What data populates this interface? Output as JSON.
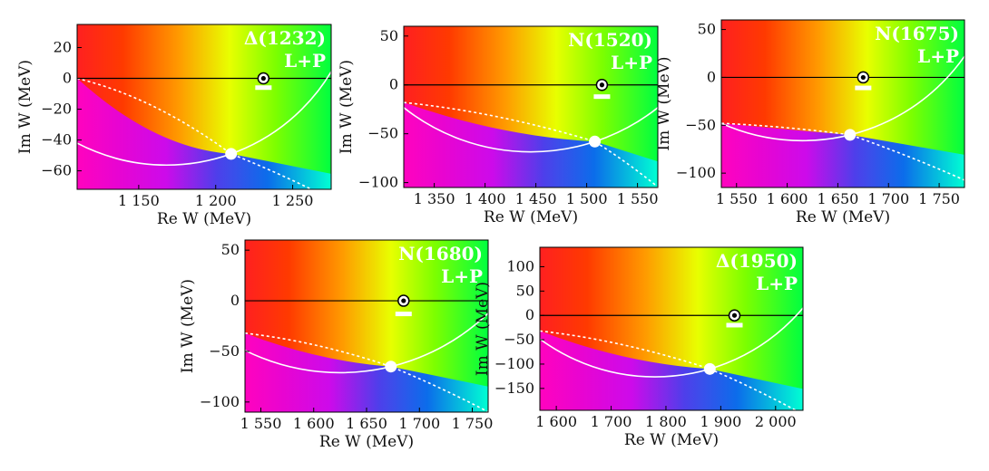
{
  "figure": {
    "description_labels": {
      "re_axis": "Re W (MeV)",
      "im_axis": "Im W (MeV)"
    }
  },
  "chart_data": [
    {
      "type": "heatmap",
      "title": "Δ(1232)",
      "subtitle": "L+P",
      "xlabel": "Re W (MeV)",
      "ylabel": "Im W (MeV)",
      "xlim": [
        1110,
        1275
      ],
      "ylim": [
        -72,
        35
      ],
      "xticks": [
        1150,
        1200,
        1250
      ],
      "xtick_labels": [
        "1 150",
        "1 200",
        "1 250"
      ],
      "yticks": [
        20,
        0,
        -20,
        -40,
        -60
      ],
      "ytick_labels": [
        "20",
        "0",
        "−20",
        "−40",
        "−60"
      ],
      "pole": [
        1210,
        -49
      ],
      "threshold_marker": [
        1231,
        0
      ],
      "marker_bar_y": -6,
      "curve_center": [
        1168,
        68
      ],
      "dashed_start": [
        1110,
        0
      ]
    },
    {
      "type": "heatmap",
      "title": "N(1520)",
      "subtitle": "L+P",
      "xlabel": "Re W (MeV)",
      "ylabel": "Im W (MeV)",
      "xlim": [
        1320,
        1570
      ],
      "ylim": [
        -105,
        60
      ],
      "xticks": [
        1350,
        1400,
        1450,
        1500,
        1550
      ],
      "xtick_labels": [
        "1 350",
        "1 400",
        "1 450",
        "1 500",
        "1 550"
      ],
      "yticks": [
        50,
        0,
        -50,
        -100
      ],
      "ytick_labels": [
        "50",
        "0",
        "−50",
        "−100"
      ],
      "pole": [
        1508,
        -58
      ],
      "threshold_marker": [
        1515,
        0
      ],
      "marker_bar_y": -12,
      "curve_center": [
        1445,
        140
      ],
      "dashed_start": [
        1320,
        -18
      ]
    },
    {
      "type": "heatmap",
      "title": "N(1675)",
      "subtitle": "L+P",
      "xlabel": "Re W (MeV)",
      "ylabel": "Im W (MeV)",
      "xlim": [
        1535,
        1775
      ],
      "ylim": [
        -115,
        60
      ],
      "xticks": [
        1550,
        1600,
        1650,
        1700,
        1750
      ],
      "xtick_labels": [
        "1 550",
        "1 600",
        "1 650",
        "1 700",
        "1 750"
      ],
      "yticks": [
        50,
        0,
        -50,
        -100
      ],
      "ytick_labels": [
        "50",
        "0",
        "−50",
        "−100"
      ],
      "pole": [
        1662,
        -60
      ],
      "threshold_marker": [
        1675,
        0
      ],
      "marker_bar_y": -11,
      "curve_center": [
        1615,
        140
      ],
      "dashed_start": [
        1535,
        -48
      ]
    },
    {
      "type": "heatmap",
      "title": "N(1680)",
      "subtitle": "L+P",
      "xlabel": "Re W (MeV)",
      "ylabel": "Im W (MeV)",
      "xlim": [
        1535,
        1765
      ],
      "ylim": [
        -110,
        60
      ],
      "xticks": [
        1550,
        1600,
        1650,
        1700,
        1750
      ],
      "xtick_labels": [
        "1 550",
        "1 600",
        "1 650",
        "1 700",
        "1 750"
      ],
      "yticks": [
        50,
        0,
        -50,
        -100
      ],
      "ytick_labels": [
        "50",
        "0",
        "−50",
        "−100"
      ],
      "pole": [
        1673,
        -65
      ],
      "threshold_marker": [
        1685,
        0
      ],
      "marker_bar_y": -13,
      "curve_center": [
        1625,
        140
      ],
      "dashed_start": [
        1535,
        -32
      ]
    },
    {
      "type": "heatmap",
      "title": "Δ(1950)",
      "subtitle": "L+P",
      "xlabel": "Re W (MeV)",
      "ylabel": "Im W (MeV)",
      "xlim": [
        1570,
        2050
      ],
      "ylim": [
        -195,
        140
      ],
      "xticks": [
        1600,
        1700,
        1800,
        1900,
        2000
      ],
      "xtick_labels": [
        "1 600",
        "1 700",
        "1 800",
        "1 900",
        "2 000"
      ],
      "yticks": [
        100,
        50,
        0,
        -50,
        -100,
        -150
      ],
      "ytick_labels": [
        "100",
        "50",
        "0",
        "−50",
        "−100",
        "−150"
      ],
      "pole": [
        1880,
        -110
      ],
      "threshold_marker": [
        1925,
        0
      ],
      "marker_bar_y": -20,
      "curve_center": [
        1780,
        270
      ],
      "dashed_start": [
        1570,
        -32
      ]
    }
  ]
}
